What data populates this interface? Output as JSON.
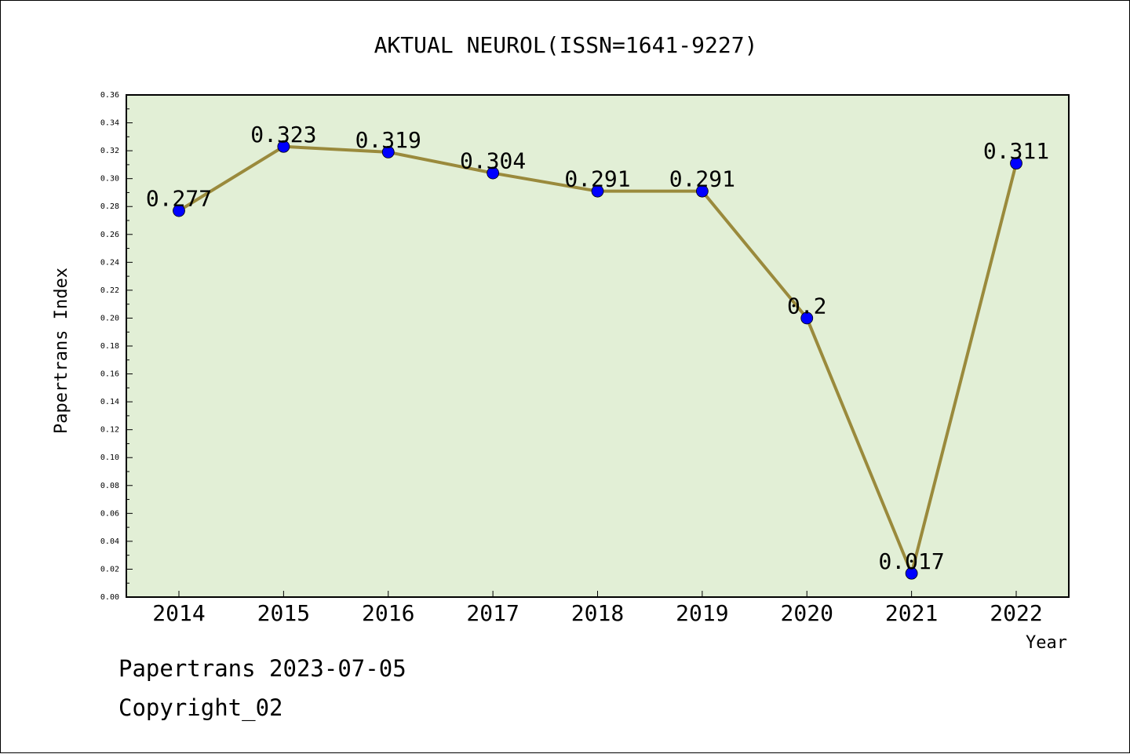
{
  "chart_data": {
    "type": "line",
    "title": "AKTUAL NEUROL(ISSN=1641-9227)",
    "xlabel": "Year",
    "ylabel": "Papertrans Index",
    "categories": [
      "2014",
      "2015",
      "2016",
      "2017",
      "2018",
      "2019",
      "2020",
      "2021",
      "2022"
    ],
    "series": [
      {
        "values": [
          0.277,
          0.323,
          0.319,
          0.304,
          0.291,
          0.291,
          0.2,
          0.017,
          0.311
        ],
        "labels": [
          "0.277",
          "0.323",
          "0.319",
          "0.304",
          "0.291",
          "0.291",
          "0.2",
          "0.017",
          "0.311"
        ]
      }
    ],
    "ylim": [
      0,
      0.36
    ],
    "yticks": [
      "0.00",
      "0.02",
      "0.04",
      "0.06",
      "0.08",
      "0.10",
      "0.12",
      "0.14",
      "0.16",
      "0.18",
      "0.20",
      "0.22",
      "0.24",
      "0.26",
      "0.28",
      "0.30",
      "0.32",
      "0.34",
      "0.36"
    ],
    "grid": false,
    "colors": {
      "plot_background": "#e2efd6",
      "line": "#9a8a3c",
      "marker": "#0000ff"
    }
  },
  "footer": {
    "credit": "Papertrans 2023-07-05",
    "copyright": "Copyright_02"
  }
}
